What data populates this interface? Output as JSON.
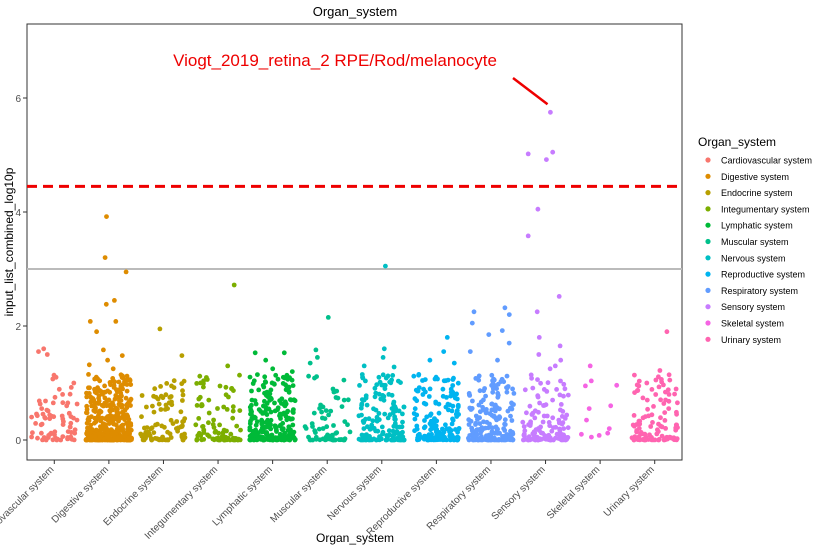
{
  "chart_data": {
    "type": "scatter",
    "title": "Organ_system",
    "xlabel": "Organ_system",
    "ylabel": "input_list_combined_log10p",
    "ylim": [
      -0.35,
      7.4
    ],
    "yticks": [
      0,
      2,
      4,
      6
    ],
    "grid": false,
    "legend_title": "Organ_system",
    "legend_placement": "right",
    "annotation": {
      "text": "Viogt_2019_retina_2 RPE/Rod/melanocyte",
      "color": "#ee0000",
      "points_to": {
        "category": "Sensory system",
        "y": 5.75
      }
    },
    "reference_lines": [
      {
        "y": 4.45,
        "color": "#ee0000",
        "style": "dashed"
      },
      {
        "y": 3.0,
        "color": "#bbbbbb",
        "style": "solid"
      }
    ],
    "categories": [
      "Cardiovascular system",
      "Digestive system",
      "Endocrine system",
      "Integumentary system",
      "Lymphatic system",
      "Muscular system",
      "Nervous system",
      "Reproductive system",
      "Respiratory system",
      "Sensory system",
      "Skeletal system",
      "Urinary system"
    ],
    "series": [
      {
        "name": "Cardiovascular system",
        "color": "#F8766D",
        "approx_count": 80,
        "highlights": [
          1.6,
          1.5,
          1.55,
          1.1,
          1.0,
          0.8,
          0.75,
          0.65,
          0.6
        ]
      },
      {
        "name": "Digestive system",
        "color": "#DE8C00",
        "approx_count": 420,
        "highlights": [
          3.92,
          3.2,
          2.95,
          2.45,
          2.38,
          2.08,
          2.08,
          1.9,
          1.58,
          1.48,
          1.4,
          1.32,
          1.25,
          1.15
        ]
      },
      {
        "name": "Endocrine system",
        "color": "#B79F00",
        "approx_count": 100,
        "highlights": [
          1.95,
          1.48,
          0.95,
          0.92,
          0.9,
          0.75
        ]
      },
      {
        "name": "Integumentary system",
        "color": "#7CAE00",
        "approx_count": 95,
        "highlights": [
          2.72,
          1.3,
          1.12,
          0.9,
          0.75
        ]
      },
      {
        "name": "Lymphatic system",
        "color": "#00BA38",
        "approx_count": 260,
        "highlights": [
          1.53,
          1.53,
          1.4,
          1.25,
          1.2,
          1.1
        ]
      },
      {
        "name": "Muscular system",
        "color": "#00C08B",
        "approx_count": 70,
        "highlights": [
          2.15,
          1.58,
          1.45,
          1.35,
          1.05
        ]
      },
      {
        "name": "Nervous system",
        "color": "#00BFC4",
        "approx_count": 160,
        "highlights": [
          3.05,
          1.6,
          1.45,
          1.3,
          1.28,
          1.1
        ]
      },
      {
        "name": "Reproductive system",
        "color": "#00B4F0",
        "approx_count": 170,
        "highlights": [
          1.8,
          1.55,
          1.4,
          1.35,
          1.15,
          1.05
        ]
      },
      {
        "name": "Respiratory system",
        "color": "#619CFF",
        "approx_count": 200,
        "highlights": [
          2.32,
          2.25,
          2.2,
          2.05,
          1.92,
          1.85,
          1.7,
          1.55,
          1.4
        ]
      },
      {
        "name": "Sensory system",
        "color": "#C77CFF",
        "approx_count": 150,
        "highlights": [
          5.75,
          5.05,
          5.02,
          4.92,
          4.05,
          3.58,
          2.52,
          2.25,
          1.8,
          1.65,
          1.5,
          1.4,
          1.3,
          1.25
        ]
      },
      {
        "name": "Skeletal system",
        "color": "#F564E3",
        "approx_count": 12,
        "highlights": [
          1.3,
          0.95,
          0.6,
          0.55,
          0.35,
          0.2,
          0.12,
          0.1,
          0.08,
          0.05
        ]
      },
      {
        "name": "Urinary system",
        "color": "#FF64B0",
        "approx_count": 110,
        "highlights": [
          1.9,
          1.22,
          1.05,
          1.0,
          0.95,
          0.88
        ]
      }
    ]
  }
}
